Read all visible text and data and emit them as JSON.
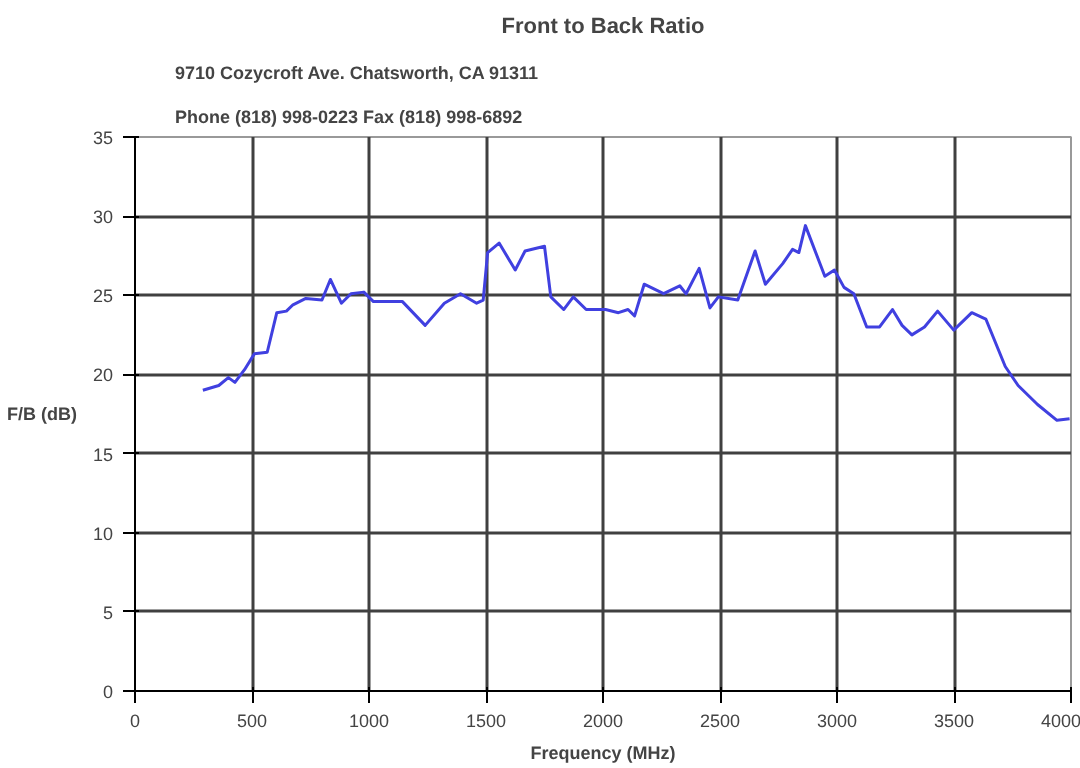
{
  "chart_data": {
    "type": "line",
    "title": "Front to Back Ratio",
    "annotations": [
      "9710 Cozycroft Ave. Chatsworth, CA 91311",
      "Phone (818) 998-0223 Fax (818) 998-6892"
    ],
    "xlabel": "Frequency (MHz)",
    "ylabel": "F/B (dB)",
    "xlim": [
      0,
      4000
    ],
    "xticks": [
      0,
      500,
      1000,
      1500,
      2000,
      2500,
      3000,
      3500,
      4000
    ],
    "ylim": [
      0,
      35
    ],
    "yticks": [
      0,
      5,
      10,
      15,
      20,
      25,
      30,
      35
    ],
    "grid": true,
    "marker": "none",
    "line_style": "solid",
    "series": [
      {
        "color": "#4040e0",
        "x": [
          290,
          358,
          399,
          427,
          468,
          510,
          565,
          606,
          647,
          675,
          730,
          799,
          835,
          882,
          923,
          978,
          1019,
          1102,
          1143,
          1240,
          1322,
          1391,
          1460,
          1488,
          1507,
          1556,
          1625,
          1667,
          1750,
          1777,
          1832,
          1873,
          1928,
          2011,
          2066,
          2107,
          2135,
          2176,
          2259,
          2328,
          2355,
          2411,
          2457,
          2493,
          2576,
          2650,
          2694,
          2768,
          2810,
          2837,
          2865,
          2948,
          2989,
          3030,
          3072,
          3127,
          3182,
          3237,
          3278,
          3320,
          3374,
          3430,
          3499,
          3576,
          3636,
          3719,
          3774,
          3857,
          3940,
          3994
        ],
        "values": [
          19.0,
          19.3,
          19.8,
          19.5,
          20.3,
          21.3,
          21.4,
          23.9,
          24.0,
          24.4,
          24.8,
          24.7,
          26.0,
          24.5,
          25.1,
          25.2,
          24.6,
          24.6,
          24.6,
          23.1,
          24.5,
          25.1,
          24.5,
          24.7,
          27.7,
          28.3,
          26.6,
          27.8,
          28.1,
          24.9,
          24.1,
          24.9,
          24.1,
          24.1,
          23.9,
          24.1,
          23.7,
          25.7,
          25.1,
          25.6,
          25.1,
          26.7,
          24.2,
          24.9,
          24.7,
          27.8,
          25.7,
          27.0,
          27.9,
          27.7,
          29.4,
          26.2,
          26.6,
          25.5,
          25.1,
          23.0,
          23.0,
          24.1,
          23.1,
          22.5,
          23.0,
          24.0,
          22.8,
          23.9,
          23.5,
          20.5,
          19.3,
          18.1,
          17.1,
          17.2
        ]
      }
    ]
  }
}
